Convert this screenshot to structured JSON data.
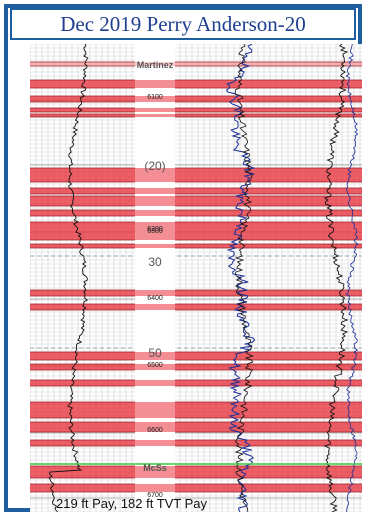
{
  "title": "Dec 2019 Perry Anderson-20",
  "formations": {
    "top": "Martinez",
    "bottom": "McSs"
  },
  "depth_labels": [
    "6100",
    "6200",
    "6300",
    "6400",
    "6500",
    "6600",
    "6700"
  ],
  "marker_labels": [
    "(20)",
    "30",
    "50"
  ],
  "pay_summary": "219 ft Pay, 182 ft TVT Pay",
  "colors": {
    "frame": "#1f5e9e",
    "title_text": "#1f3f8f",
    "pay_band": "#e8323c",
    "pay_band_light": "#f4a0a4",
    "grid": "#c8c8c8",
    "curve_black": "#111111",
    "curve_blue": "#1a2f9a",
    "mcss_line": "#3cc83c"
  }
}
